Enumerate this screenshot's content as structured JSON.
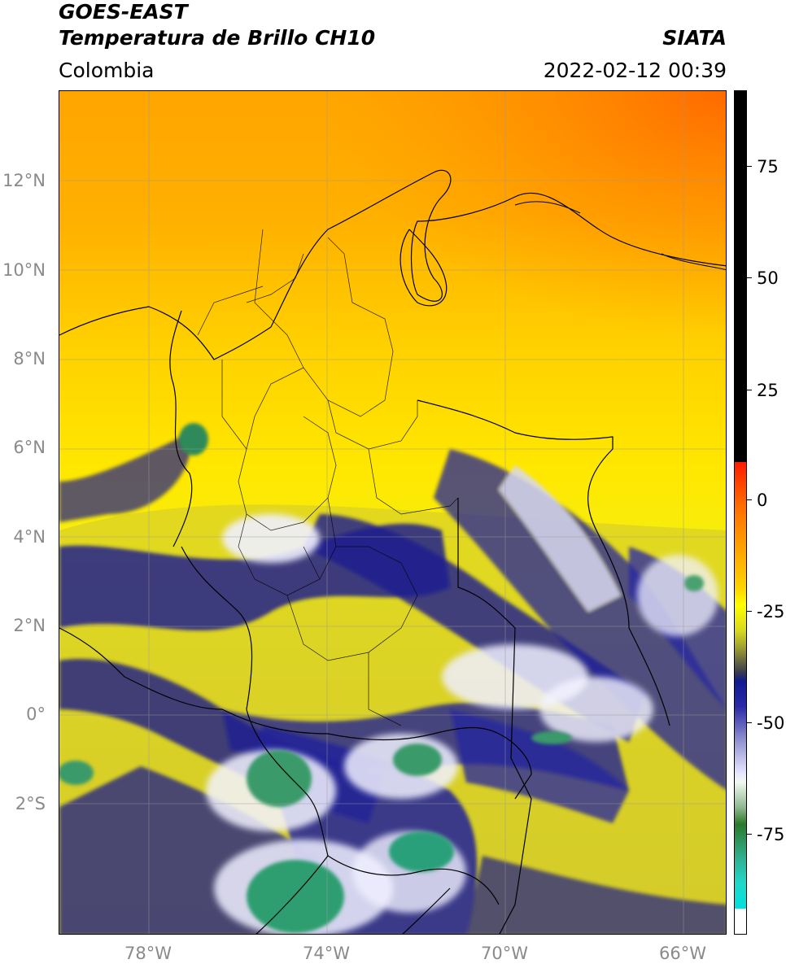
{
  "header": {
    "satellite": "GOES-EAST",
    "product": "Temperatura de Brillo CH10",
    "org": "SIATA",
    "region": "Colombia",
    "datetime": "2022-02-12 00:39"
  },
  "map": {
    "latitude_labels": [
      "12°N",
      "10°N",
      "8°N",
      "6°N",
      "4°N",
      "2°N",
      "0°",
      "2°S"
    ],
    "longitude_labels": [
      "78°W",
      "74°W",
      "70°W",
      "66°W"
    ],
    "gridlines": true,
    "colors": {
      "warm": "#ff8c00",
      "mid": "#ffff00",
      "cold": "#1a1a8a",
      "very_cold": "#2e9e6a"
    }
  },
  "colorbar": {
    "labels": [
      "75",
      "50",
      "25",
      "0",
      "-25",
      "-50",
      "-75"
    ]
  }
}
